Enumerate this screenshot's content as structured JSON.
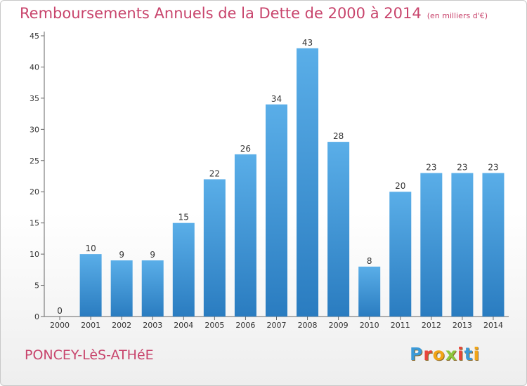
{
  "chart_data": {
    "type": "bar",
    "title": "Remboursements Annuels de la Dette de 2000 à 2014",
    "subtitle": "(en milliers d'€)",
    "categories": [
      "2000",
      "2001",
      "2002",
      "2003",
      "2004",
      "2005",
      "2006",
      "2007",
      "2008",
      "2009",
      "2010",
      "2011",
      "2012",
      "2013",
      "2014"
    ],
    "values": [
      0,
      10,
      9,
      9,
      15,
      22,
      26,
      34,
      43,
      28,
      8,
      20,
      23,
      23,
      23
    ],
    "ylim": [
      0,
      45
    ],
    "yticks": [
      0,
      5,
      10,
      15,
      20,
      25,
      30,
      35,
      40,
      45
    ],
    "grid": false,
    "bar_color_top": "#5aaee8",
    "bar_color_bottom": "#2a7cc0"
  },
  "footer": {
    "commune": "PONCEY-LèS-ATHéE",
    "logo_letters": [
      "P",
      "r",
      "o",
      "x",
      "i",
      "t",
      "i"
    ],
    "logo_colors": [
      "#3b9ad9",
      "#e8453c",
      "#f2a516",
      "#8cc63e",
      "#e8453c",
      "#3b9ad9",
      "#f2a516"
    ]
  },
  "brand": {
    "title_color": "#c8446c"
  }
}
